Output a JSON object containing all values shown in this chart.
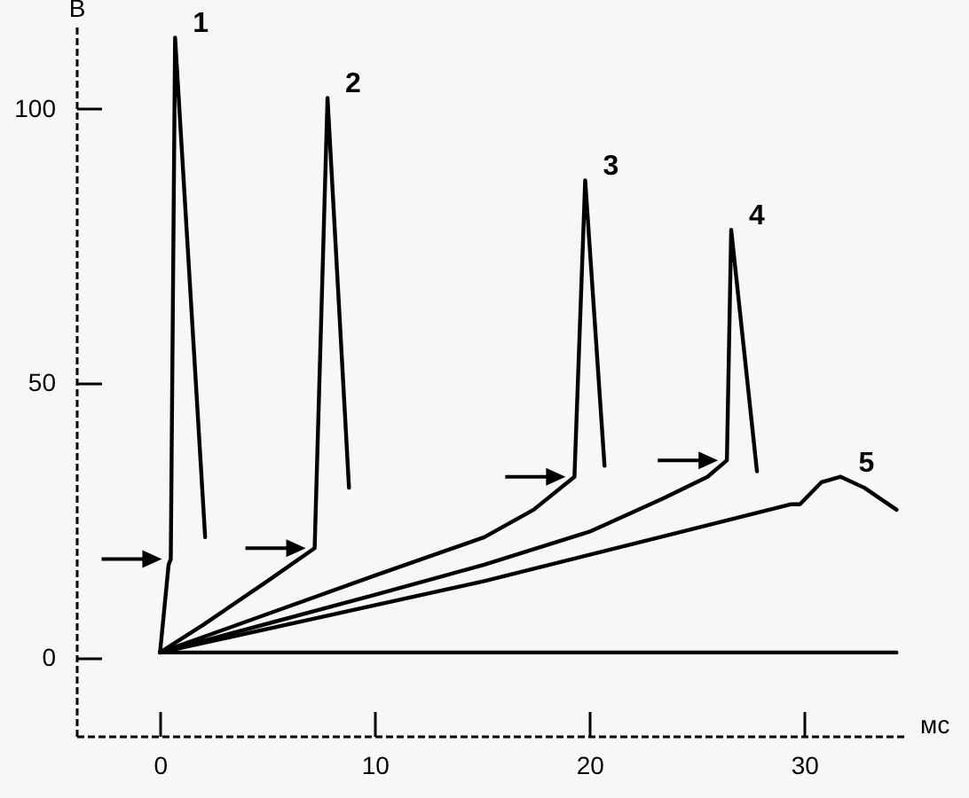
{
  "chart_data": {
    "type": "line",
    "xlabel": "мс",
    "ylabel": "В",
    "xlim": [
      -3.9,
      34.7
    ],
    "xticks": [
      0,
      10,
      20,
      30
    ],
    "ylim": [
      -14.2,
      115
    ],
    "yticks": [
      0,
      50,
      100
    ],
    "series": [
      {
        "name": "1",
        "color": "#000000",
        "x": [
          0,
          0.4,
          0.5,
          0.7,
          2.1
        ],
        "values": [
          1,
          17,
          18,
          113,
          22
        ]
      },
      {
        "name": "2",
        "color": "#000000",
        "x": [
          0,
          2,
          5,
          7.2,
          7.8,
          8.8
        ],
        "values": [
          1,
          6,
          14,
          20,
          102,
          31
        ]
      },
      {
        "name": "3",
        "color": "#000000",
        "x": [
          0,
          5,
          10,
          15.1,
          17.4,
          19.3,
          19.8,
          20.7
        ],
        "values": [
          1,
          8,
          15,
          22,
          27,
          33,
          87,
          35
        ]
      },
      {
        "name": "4",
        "color": "#000000",
        "x": [
          0,
          10,
          15.1,
          20,
          23.4,
          25.5,
          26.4,
          26.6,
          27.8
        ],
        "values": [
          1,
          11.5,
          17,
          23,
          29,
          33,
          36,
          78,
          34
        ]
      },
      {
        "name": "5",
        "color": "#000000",
        "x": [
          0,
          15.1,
          29.4,
          29.8,
          30.8,
          31.7,
          32.8,
          34.3
        ],
        "values": [
          1,
          14,
          28,
          28,
          32,
          33,
          31,
          27
        ]
      },
      {
        "color": "#000000",
        "x": [
          0,
          34.3
        ],
        "values": [
          1,
          1
        ]
      }
    ]
  }
}
